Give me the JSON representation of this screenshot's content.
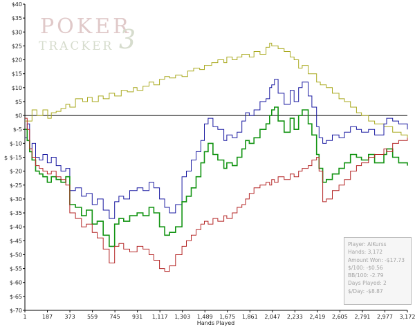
{
  "chart_data": {
    "type": "line",
    "title": "",
    "xlabel": "Hands Played",
    "ylabel": "$",
    "xlim": [
      1,
      3172
    ],
    "ylim": [
      -70,
      40
    ],
    "x_ticks": [
      "1",
      "187",
      "373",
      "559",
      "745",
      "931",
      "1,117",
      "1,303",
      "1,489",
      "1,675",
      "1,861",
      "2,047",
      "2,233",
      "2,419",
      "2,605",
      "2,791",
      "2,977",
      "3,172"
    ],
    "y_ticks": [
      "$40",
      "$35",
      "$30",
      "$25",
      "$20",
      "$15",
      "$10",
      "$5",
      "$0",
      "$-5",
      "$-10",
      "$-15",
      "$-20",
      "$-25",
      "$-30",
      "$-35",
      "$-40",
      "$-45",
      "$-50",
      "$-55",
      "$-60",
      "$-65",
      "$-70"
    ],
    "grid": false,
    "watermark": {
      "line1": "POKER",
      "line2": "TRACKER",
      "numeral": "3"
    },
    "series": [
      {
        "color": "#a9a91e",
        "style": "step",
        "points": [
          [
            1,
            -2
          ],
          [
            60,
            2
          ],
          [
            100,
            0
          ],
          [
            150,
            2
          ],
          [
            190,
            -1
          ],
          [
            220,
            1
          ],
          [
            260,
            1.5
          ],
          [
            300,
            2.5
          ],
          [
            340,
            4
          ],
          [
            373,
            3
          ],
          [
            420,
            6
          ],
          [
            480,
            5
          ],
          [
            520,
            6.5
          ],
          [
            559,
            5
          ],
          [
            610,
            7
          ],
          [
            650,
            6
          ],
          [
            700,
            8
          ],
          [
            745,
            7
          ],
          [
            800,
            9
          ],
          [
            850,
            8.5
          ],
          [
            900,
            10
          ],
          [
            931,
            9
          ],
          [
            980,
            10.5
          ],
          [
            1030,
            12
          ],
          [
            1070,
            11
          ],
          [
            1117,
            13
          ],
          [
            1160,
            14
          ],
          [
            1200,
            13.5
          ],
          [
            1250,
            14.5
          ],
          [
            1303,
            14
          ],
          [
            1350,
            16
          ],
          [
            1400,
            17
          ],
          [
            1450,
            16.5
          ],
          [
            1489,
            18
          ],
          [
            1550,
            19
          ],
          [
            1600,
            20
          ],
          [
            1650,
            19
          ],
          [
            1675,
            21
          ],
          [
            1720,
            20
          ],
          [
            1760,
            21
          ],
          [
            1800,
            22
          ],
          [
            1861,
            21
          ],
          [
            1900,
            23
          ],
          [
            1950,
            22
          ],
          [
            2000,
            24.5
          ],
          [
            2030,
            26
          ],
          [
            2047,
            25
          ],
          [
            2100,
            24
          ],
          [
            2150,
            23
          ],
          [
            2200,
            21
          ],
          [
            2233,
            20
          ],
          [
            2270,
            17
          ],
          [
            2300,
            18
          ],
          [
            2350,
            15
          ],
          [
            2419,
            12
          ],
          [
            2450,
            11
          ],
          [
            2500,
            10
          ],
          [
            2550,
            8
          ],
          [
            2605,
            6
          ],
          [
            2650,
            5
          ],
          [
            2700,
            3
          ],
          [
            2750,
            1
          ],
          [
            2791,
            0
          ],
          [
            2850,
            -2
          ],
          [
            2900,
            -3
          ],
          [
            2977,
            -4
          ],
          [
            3050,
            -6
          ],
          [
            3120,
            -7
          ],
          [
            3172,
            -8
          ]
        ]
      },
      {
        "color": "#1818a0",
        "style": "step",
        "points": [
          [
            1,
            -8
          ],
          [
            20,
            -3
          ],
          [
            40,
            -12
          ],
          [
            60,
            -10
          ],
          [
            90,
            -15
          ],
          [
            120,
            -16
          ],
          [
            150,
            -14
          ],
          [
            187,
            -17
          ],
          [
            220,
            -15
          ],
          [
            260,
            -18
          ],
          [
            300,
            -20
          ],
          [
            340,
            -19
          ],
          [
            373,
            -27
          ],
          [
            420,
            -26
          ],
          [
            470,
            -29
          ],
          [
            510,
            -28
          ],
          [
            559,
            -32
          ],
          [
            600,
            -30
          ],
          [
            650,
            -34
          ],
          [
            700,
            -37
          ],
          [
            745,
            -31
          ],
          [
            780,
            -29
          ],
          [
            820,
            -30
          ],
          [
            870,
            -27
          ],
          [
            931,
            -26
          ],
          [
            980,
            -27
          ],
          [
            1030,
            -24
          ],
          [
            1070,
            -26
          ],
          [
            1117,
            -30
          ],
          [
            1160,
            -33
          ],
          [
            1200,
            -35
          ],
          [
            1250,
            -32
          ],
          [
            1303,
            -22
          ],
          [
            1340,
            -20
          ],
          [
            1380,
            -16
          ],
          [
            1420,
            -13
          ],
          [
            1460,
            -9
          ],
          [
            1489,
            -3
          ],
          [
            1520,
            -1
          ],
          [
            1560,
            -4
          ],
          [
            1600,
            -5
          ],
          [
            1650,
            -9
          ],
          [
            1675,
            -7
          ],
          [
            1720,
            -8
          ],
          [
            1760,
            -6
          ],
          [
            1800,
            -2
          ],
          [
            1830,
            1
          ],
          [
            1861,
            0
          ],
          [
            1900,
            2
          ],
          [
            1950,
            5
          ],
          [
            2000,
            6
          ],
          [
            2030,
            10
          ],
          [
            2047,
            11
          ],
          [
            2070,
            13
          ],
          [
            2100,
            8
          ],
          [
            2150,
            4
          ],
          [
            2200,
            9
          ],
          [
            2233,
            5
          ],
          [
            2270,
            10
          ],
          [
            2300,
            12
          ],
          [
            2350,
            7
          ],
          [
            2380,
            3
          ],
          [
            2419,
            -4
          ],
          [
            2440,
            -8
          ],
          [
            2470,
            -10
          ],
          [
            2500,
            -9
          ],
          [
            2550,
            -7
          ],
          [
            2605,
            -8
          ],
          [
            2650,
            -6
          ],
          [
            2700,
            -4
          ],
          [
            2750,
            -5
          ],
          [
            2791,
            -6
          ],
          [
            2850,
            -5
          ],
          [
            2900,
            -7
          ],
          [
            2977,
            -3
          ],
          [
            3000,
            -1
          ],
          [
            3050,
            -2
          ],
          [
            3100,
            -3
          ],
          [
            3172,
            -5
          ]
        ]
      },
      {
        "color": "#119311",
        "style": "step",
        "points": [
          [
            1,
            -5
          ],
          [
            20,
            -9
          ],
          [
            40,
            -13
          ],
          [
            60,
            -16
          ],
          [
            90,
            -20
          ],
          [
            120,
            -21
          ],
          [
            150,
            -22
          ],
          [
            187,
            -24
          ],
          [
            220,
            -22
          ],
          [
            260,
            -23
          ],
          [
            300,
            -24
          ],
          [
            340,
            -22
          ],
          [
            373,
            -32
          ],
          [
            420,
            -33
          ],
          [
            470,
            -36
          ],
          [
            510,
            -34
          ],
          [
            559,
            -39
          ],
          [
            600,
            -38
          ],
          [
            650,
            -43
          ],
          [
            700,
            -47
          ],
          [
            745,
            -39
          ],
          [
            780,
            -37
          ],
          [
            820,
            -38
          ],
          [
            870,
            -36
          ],
          [
            931,
            -35
          ],
          [
            980,
            -36
          ],
          [
            1030,
            -33
          ],
          [
            1070,
            -35
          ],
          [
            1117,
            -40
          ],
          [
            1160,
            -43
          ],
          [
            1200,
            -42
          ],
          [
            1250,
            -40
          ],
          [
            1303,
            -31
          ],
          [
            1340,
            -29
          ],
          [
            1380,
            -26
          ],
          [
            1420,
            -22
          ],
          [
            1460,
            -17
          ],
          [
            1489,
            -13
          ],
          [
            1520,
            -10
          ],
          [
            1560,
            -14
          ],
          [
            1600,
            -16
          ],
          [
            1650,
            -19
          ],
          [
            1675,
            -17
          ],
          [
            1720,
            -18
          ],
          [
            1760,
            -15
          ],
          [
            1800,
            -12
          ],
          [
            1830,
            -9
          ],
          [
            1861,
            -10
          ],
          [
            1900,
            -8
          ],
          [
            1950,
            -5
          ],
          [
            2000,
            -3
          ],
          [
            2030,
            0
          ],
          [
            2047,
            2
          ],
          [
            2070,
            3
          ],
          [
            2100,
            -2
          ],
          [
            2150,
            -6
          ],
          [
            2200,
            -1
          ],
          [
            2233,
            -5
          ],
          [
            2270,
            0
          ],
          [
            2300,
            2
          ],
          [
            2350,
            -3
          ],
          [
            2380,
            -7
          ],
          [
            2419,
            -14
          ],
          [
            2440,
            -19
          ],
          [
            2470,
            -24
          ],
          [
            2500,
            -23
          ],
          [
            2550,
            -21
          ],
          [
            2605,
            -19
          ],
          [
            2650,
            -17
          ],
          [
            2700,
            -14
          ],
          [
            2750,
            -15
          ],
          [
            2791,
            -16
          ],
          [
            2850,
            -14
          ],
          [
            2900,
            -17
          ],
          [
            2977,
            -14
          ],
          [
            3000,
            -12
          ],
          [
            3050,
            -15
          ],
          [
            3100,
            -17
          ],
          [
            3172,
            -18
          ]
        ]
      },
      {
        "color": "#b42424",
        "style": "step",
        "points": [
          [
            1,
            -1
          ],
          [
            20,
            -5
          ],
          [
            40,
            -12
          ],
          [
            60,
            -15
          ],
          [
            90,
            -18
          ],
          [
            120,
            -19
          ],
          [
            150,
            -20
          ],
          [
            187,
            -21
          ],
          [
            220,
            -20
          ],
          [
            260,
            -22
          ],
          [
            300,
            -23
          ],
          [
            340,
            -25
          ],
          [
            373,
            -35
          ],
          [
            420,
            -37
          ],
          [
            470,
            -40
          ],
          [
            510,
            -39
          ],
          [
            559,
            -42
          ],
          [
            600,
            -44
          ],
          [
            650,
            -48
          ],
          [
            700,
            -53
          ],
          [
            745,
            -47
          ],
          [
            780,
            -46
          ],
          [
            820,
            -48
          ],
          [
            870,
            -49
          ],
          [
            931,
            -47
          ],
          [
            980,
            -48
          ],
          [
            1030,
            -50
          ],
          [
            1070,
            -52
          ],
          [
            1117,
            -55
          ],
          [
            1160,
            -56
          ],
          [
            1200,
            -54
          ],
          [
            1250,
            -50
          ],
          [
            1303,
            -47
          ],
          [
            1340,
            -45
          ],
          [
            1380,
            -43
          ],
          [
            1420,
            -41
          ],
          [
            1460,
            -39
          ],
          [
            1489,
            -38
          ],
          [
            1520,
            -39
          ],
          [
            1560,
            -37
          ],
          [
            1600,
            -38
          ],
          [
            1650,
            -36
          ],
          [
            1675,
            -37
          ],
          [
            1720,
            -35
          ],
          [
            1760,
            -33
          ],
          [
            1800,
            -32
          ],
          [
            1830,
            -30
          ],
          [
            1861,
            -28
          ],
          [
            1900,
            -26
          ],
          [
            1950,
            -25
          ],
          [
            2000,
            -24
          ],
          [
            2030,
            -25
          ],
          [
            2047,
            -23
          ],
          [
            2070,
            -24
          ],
          [
            2100,
            -22
          ],
          [
            2150,
            -23
          ],
          [
            2200,
            -21
          ],
          [
            2233,
            -22
          ],
          [
            2270,
            -20
          ],
          [
            2300,
            -19
          ],
          [
            2350,
            -18
          ],
          [
            2380,
            -16
          ],
          [
            2419,
            -15
          ],
          [
            2440,
            -20
          ],
          [
            2470,
            -31
          ],
          [
            2500,
            -30
          ],
          [
            2550,
            -27
          ],
          [
            2605,
            -25
          ],
          [
            2650,
            -23
          ],
          [
            2700,
            -20
          ],
          [
            2750,
            -18
          ],
          [
            2791,
            -17
          ],
          [
            2850,
            -15
          ],
          [
            2900,
            -14
          ],
          [
            2977,
            -12
          ],
          [
            3000,
            -13
          ],
          [
            3050,
            -10
          ],
          [
            3100,
            -9
          ],
          [
            3172,
            -8
          ]
        ]
      }
    ],
    "stats": {
      "player": "Player: AlKurss",
      "hands": "Hands: 3,172",
      "amount_won": "Amount Won: -$17.73",
      "per100": "$/100: -$0.56",
      "bb100": "BB/100: -2.79",
      "days": "Days Played: 2",
      "per_day": "$/Day: -$8.87"
    }
  }
}
